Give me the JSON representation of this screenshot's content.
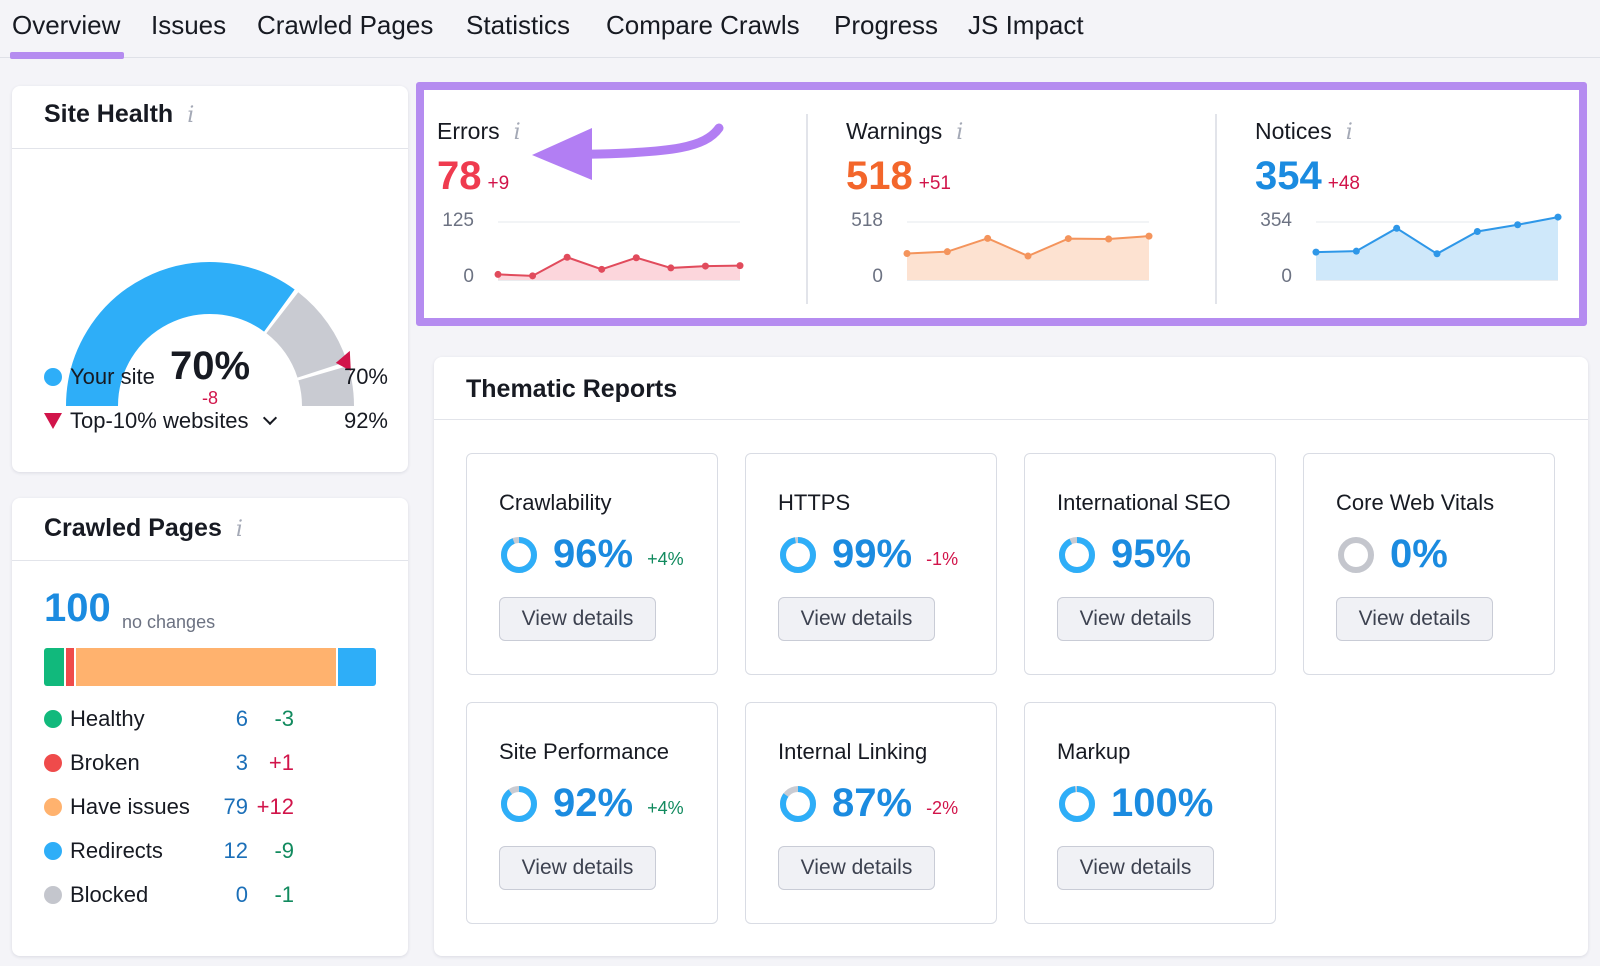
{
  "tabs": [
    {
      "label": "Overview",
      "active": true
    },
    {
      "label": "Issues"
    },
    {
      "label": "Crawled Pages"
    },
    {
      "label": "Statistics"
    },
    {
      "label": "Compare Crawls"
    },
    {
      "label": "Progress"
    },
    {
      "label": "JS Impact"
    }
  ],
  "site_health": {
    "title": "Site Health",
    "info_icon": "i",
    "score": "70%",
    "score_fraction": 0.7,
    "delta": "-8",
    "legend": [
      {
        "label": "Your site",
        "value": "70%"
      },
      {
        "label": "Top-10% websites",
        "value": "92%"
      }
    ],
    "colors": {
      "site": "#2eaef8",
      "rest": "#c9cbd2",
      "marker": "#d1144a"
    }
  },
  "crawled_pages": {
    "title": "Crawled Pages",
    "info_icon": "i",
    "total": "100",
    "total_note": "no changes",
    "rows": [
      {
        "label": "Healthy",
        "count": "6",
        "delta": "-3",
        "color": "#11b97c"
      },
      {
        "label": "Broken",
        "count": "3",
        "delta": "+1",
        "color": "#ef4b4b"
      },
      {
        "label": "Have issues",
        "count": "79",
        "delta": "+12",
        "color": "#ffb26e"
      },
      {
        "label": "Redirects",
        "count": "12",
        "delta": "-9",
        "color": "#2eaef8"
      },
      {
        "label": "Blocked",
        "count": "0",
        "delta": "-1",
        "color": "#c4c6cd"
      }
    ]
  },
  "metrics": [
    {
      "label": "Errors",
      "info_icon": "i",
      "value": "78",
      "delta": "+9",
      "ymax": "125",
      "ymin": "0",
      "color": "#ef3b4f",
      "line": "#e14b5c",
      "fill": "#fcd6dc",
      "series": [
        12,
        9,
        49,
        23,
        48,
        26,
        30,
        31
      ]
    },
    {
      "label": "Warnings",
      "info_icon": "i",
      "value": "518",
      "delta": "+51",
      "ymax": "518",
      "ymin": "0",
      "color": "#f3662b",
      "line": "#f4945c",
      "fill": "#fde2d1",
      "series": [
        237,
        253,
        372,
        214,
        370,
        366,
        392
      ]
    },
    {
      "label": "Notices",
      "info_icon": "i",
      "value": "354",
      "delta": "+48",
      "ymax": "354",
      "ymin": "0",
      "color": "#1b8be0",
      "line": "#2e97e8",
      "fill": "#cfe8fa",
      "series": [
        170,
        176,
        316,
        160,
        296,
        337,
        384
      ]
    }
  ],
  "thematic": {
    "title": "Thematic Reports",
    "button_label": "View details",
    "reports": [
      {
        "name": "Crawlability",
        "pct": "96%",
        "fraction": 0.96,
        "delta": "+4%",
        "delta_type": "up"
      },
      {
        "name": "HTTPS",
        "pct": "99%",
        "fraction": 0.99,
        "delta": "-1%",
        "delta_type": "down"
      },
      {
        "name": "International SEO",
        "pct": "95%",
        "fraction": 0.95,
        "delta": "",
        "delta_type": ""
      },
      {
        "name": "Core Web Vitals",
        "pct": "0%",
        "fraction": 0.0,
        "delta": "",
        "delta_type": ""
      },
      {
        "name": "Site Performance",
        "pct": "92%",
        "fraction": 0.92,
        "delta": "+4%",
        "delta_type": "up"
      },
      {
        "name": "Internal Linking",
        "pct": "87%",
        "fraction": 0.87,
        "delta": "-2%",
        "delta_type": "down"
      },
      {
        "name": "Markup",
        "pct": "100%",
        "fraction": 1.0,
        "delta": "",
        "delta_type": ""
      }
    ]
  },
  "annotation": {
    "arrow_color": "#b27ef3",
    "box_color": "#b58cf0"
  }
}
